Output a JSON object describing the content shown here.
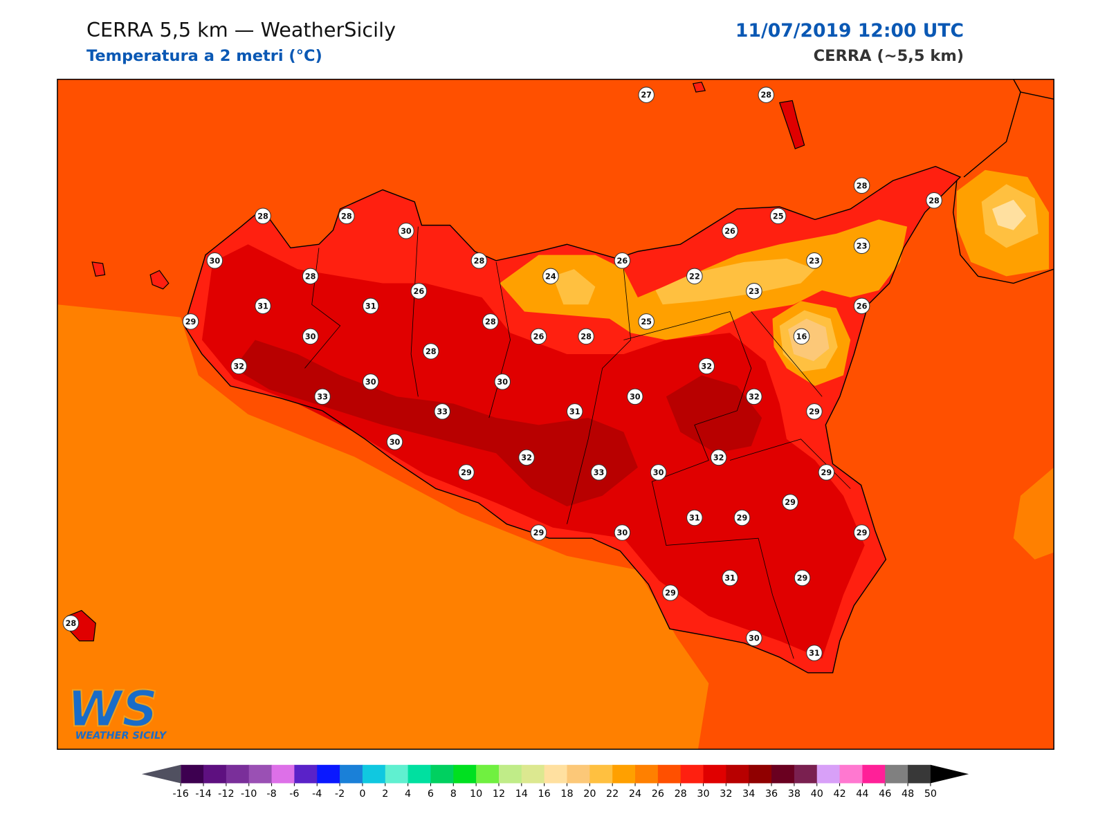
{
  "header": {
    "title": "CERRA 5,5 km — WeatherSicily",
    "subtitle": "Temperatura a 2 metri (°C)",
    "datetime": "11/07/2019 12:00 UTC",
    "model": "CERRA (~5,5 km)"
  },
  "stations": [
    27,
    28,
    28,
    28,
    28,
    28,
    30,
    25,
    26,
    23,
    30,
    28,
    26,
    23,
    28,
    24,
    22,
    26,
    23,
    31,
    31,
    26,
    29,
    28,
    25,
    30,
    26,
    28,
    16,
    28,
    32,
    32,
    30,
    30,
    33,
    30,
    32,
    33,
    31,
    29,
    30,
    32,
    32,
    29,
    33,
    30,
    29,
    29,
    31,
    29,
    29,
    30,
    29,
    31,
    29,
    29,
    28,
    30,
    31
  ],
  "colorbar": {
    "ticks": [
      -16,
      -14,
      -12,
      -10,
      -8,
      -6,
      -4,
      -2,
      0,
      2,
      4,
      6,
      8,
      10,
      12,
      14,
      16,
      18,
      20,
      22,
      24,
      26,
      28,
      30,
      32,
      34,
      36,
      38,
      40,
      42,
      44,
      46,
      48,
      50
    ],
    "colors": [
      "#3d0050",
      "#5e1080",
      "#7a2f9a",
      "#9a50b4",
      "#dd70e8",
      "#5a22c8",
      "#0a18ff",
      "#1a80d8",
      "#10c8e0",
      "#60f0d0",
      "#00e0a0",
      "#00d060",
      "#00e020",
      "#70f040",
      "#c0ec88",
      "#dce890",
      "#ffe0a0",
      "#fcc878",
      "#ffc040",
      "#ffa000",
      "#ff8000",
      "#ff5000",
      "#ff2010",
      "#e00000",
      "#b80000",
      "#900000",
      "#6a0020",
      "#7a2050",
      "#d8a0f8",
      "#ff78d0",
      "#ff2098",
      "#808080",
      "#383838"
    ],
    "under_color": "#505060",
    "over_color": "#000000"
  },
  "logo": {
    "mark": "WS",
    "text": "WEATHER SICILY"
  }
}
